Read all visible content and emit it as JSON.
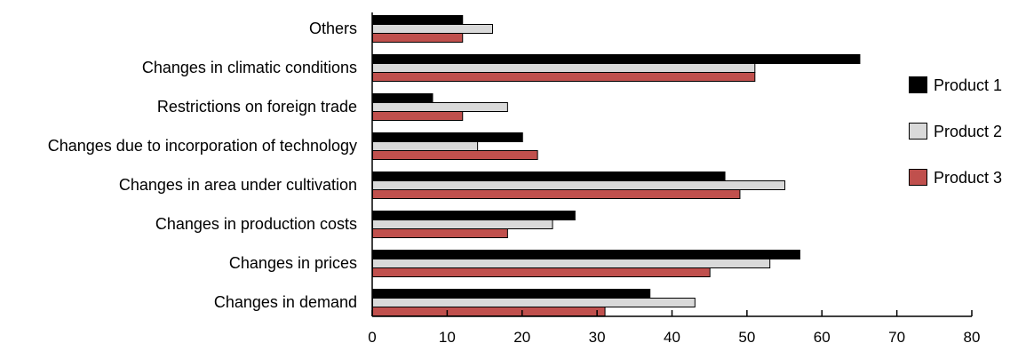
{
  "chart_data": {
    "type": "bar",
    "orientation": "horizontal",
    "categories": [
      "Others",
      "Changes in climatic conditions",
      "Restrictions on foreign trade",
      "Changes due to incorporation of technology",
      "Changes in area under cultivation",
      "Changes in production costs",
      "Changes in prices",
      "Changes in demand"
    ],
    "series": [
      {
        "name": "Product 1",
        "color": "#000000",
        "values": [
          12,
          65,
          8,
          20,
          47,
          27,
          57,
          37
        ]
      },
      {
        "name": "Product 2",
        "color": "#d9d9d9",
        "values": [
          16,
          51,
          18,
          14,
          55,
          24,
          53,
          43
        ]
      },
      {
        "name": "Product 3",
        "color": "#c0504d",
        "values": [
          12,
          51,
          12,
          22,
          49,
          18,
          45,
          31
        ]
      }
    ],
    "xlim": [
      0,
      80
    ],
    "xticks": [
      "0",
      "10",
      "20",
      "30",
      "40",
      "50",
      "60",
      "70",
      "80"
    ],
    "grid": false,
    "legend_position": "right"
  }
}
